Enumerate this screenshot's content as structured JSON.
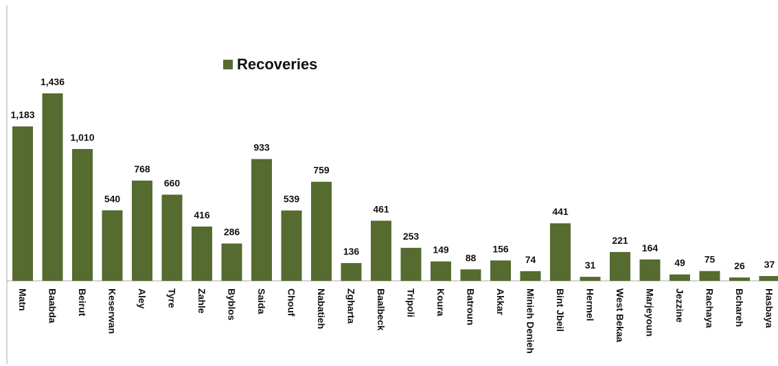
{
  "chart_data": {
    "type": "bar",
    "title": "",
    "xlabel": "",
    "ylabel": "",
    "categories": [
      "Matn",
      "Baabda",
      "Beirut",
      "Keserwan",
      "Aley",
      "Tyre",
      "Zahle",
      "Byblos",
      "Saida",
      "Chouf",
      "Nabatieh",
      "Zgharta",
      "Baalbeck",
      "Tripoli",
      "Koura",
      "Batroun",
      "Akkar",
      "Minieh Denieh",
      "Bint Jbeil",
      "Hermel",
      "West Bekaa",
      "Marjeyoun",
      "Jezzine",
      "Rachaya",
      "Bchareh",
      "Hasbaya"
    ],
    "series": [
      {
        "name": "Recoveries",
        "values": [
          1183,
          1436,
          1010,
          540,
          768,
          660,
          416,
          286,
          933,
          539,
          759,
          136,
          461,
          253,
          149,
          88,
          156,
          74,
          441,
          31,
          221,
          164,
          49,
          75,
          26,
          37
        ],
        "labels": [
          "1,183",
          "1,436",
          "1,010",
          "540",
          "768",
          "660",
          "416",
          "286",
          "933",
          "539",
          "759",
          "136",
          "461",
          "253",
          "149",
          "88",
          "156",
          "74",
          "441",
          "31",
          "221",
          "164",
          "49",
          "75",
          "26",
          "37"
        ],
        "color": "#556b2f"
      }
    ],
    "ylim": [
      0,
      1436
    ],
    "grid": false,
    "legend": "top-center"
  }
}
